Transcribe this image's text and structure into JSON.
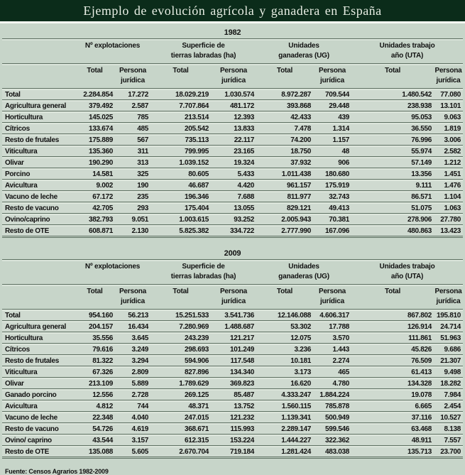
{
  "title": "Ejemplo de evolución agrícola y ganadera en España",
  "source": "Fuente: Censos Agrarios 1982-2009",
  "colors": {
    "title_bar": "#0b2c1a",
    "title_text": "#e9efe5",
    "page_background": "#c7d5c9",
    "row_background": "#cfdad0",
    "rule_line": "#5e7062"
  },
  "header": {
    "groups": [
      {
        "line1": "Nº explotaciones",
        "line2": ""
      },
      {
        "line1": "Superficie de",
        "line2": "tierras labradas (ha)"
      },
      {
        "line1": "Unidades",
        "line2": "ganaderas (UG)"
      },
      {
        "line1": "Unidades trabajo",
        "line2": "año (UTA)"
      }
    ],
    "sub": {
      "total": "Total",
      "legal_line1": "Persona",
      "legal_line2": "jurídica"
    }
  },
  "chart_data": [
    {
      "type": "table",
      "year": "1982",
      "column_groups": [
        "Nº explotaciones",
        "Superficie de tierras labradas (ha)",
        "Unidades ganaderas (UG)",
        "Unidades trabajo año (UTA)"
      ],
      "subcolumns": [
        "Total",
        "Persona jurídica"
      ],
      "rows": [
        {
          "label": "Total",
          "values": [
            "2.284.854",
            "17.272",
            "18.029.219",
            "1.030.574",
            "8.972.287",
            "709.544",
            "1.480.542",
            "77.080"
          ]
        },
        {
          "label": "Agricultura general",
          "values": [
            "379.492",
            "2.587",
            "7.707.864",
            "481.172",
            "393.868",
            "29.448",
            "238.938",
            "13.101"
          ]
        },
        {
          "label": "Horticultura",
          "values": [
            "145.025",
            "785",
            "213.514",
            "12.393",
            "42.433",
            "439",
            "95.053",
            "9.063"
          ]
        },
        {
          "label": "Cítricos",
          "values": [
            "133.674",
            "485",
            "205.542",
            "13.833",
            "7.478",
            "1.314",
            "36.550",
            "1.819"
          ]
        },
        {
          "label": "Resto de frutales",
          "values": [
            "175.889",
            "567",
            "735.113",
            "22.117",
            "74.200",
            "1.157",
            "76.996",
            "3.006"
          ]
        },
        {
          "label": "Viticultura",
          "values": [
            "135.360",
            "311",
            "799.995",
            "23.165",
            "18.750",
            "48",
            "55.974",
            "2.582"
          ]
        },
        {
          "label": "Olivar",
          "values": [
            "190.290",
            "313",
            "1.039.152",
            "19.324",
            "37.932",
            "906",
            "57.149",
            "1.212"
          ]
        },
        {
          "label": "Porcino",
          "values": [
            "14.581",
            "325",
            "80.605",
            "5.433",
            "1.011.438",
            "180.680",
            "13.356",
            "1.451"
          ]
        },
        {
          "label": "Avicultura",
          "values": [
            "9.002",
            "190",
            "46.687",
            "4.420",
            "961.157",
            "175.919",
            "9.111",
            "1.476"
          ]
        },
        {
          "label": "Vacuno de leche",
          "values": [
            "67.172",
            "235",
            "196.346",
            "7.688",
            "811.977",
            "32.743",
            "86.571",
            "1.104"
          ]
        },
        {
          "label": "Resto de vacuno",
          "values": [
            "42.705",
            "293",
            "175.404",
            "13.055",
            "829.121",
            "49.413",
            "51.075",
            "1.063"
          ]
        },
        {
          "label": "Ovino/caprino",
          "values": [
            "382.793",
            "9.051",
            "1.003.615",
            "93.252",
            "2.005.943",
            "70.381",
            "278.906",
            "27.780"
          ]
        },
        {
          "label": "Resto de OTE",
          "values": [
            "608.871",
            "2.130",
            "5.825.382",
            "334.722",
            "2.777.990",
            "167.096",
            "480.863",
            "13.423"
          ]
        }
      ]
    },
    {
      "type": "table",
      "year": "2009",
      "column_groups": [
        "Nº explotaciones",
        "Superficie de tierras labradas (ha)",
        "Unidades ganaderas (UG)",
        "Unidades trabajo año (UTA)"
      ],
      "subcolumns": [
        "Total",
        "Persona jurídica"
      ],
      "rows": [
        {
          "label": "Total",
          "values": [
            "954.160",
            "56.213",
            "15.251.533",
            "3.541.736",
            "12.146.088",
            "4.606.317",
            "867.802",
            "195.810"
          ]
        },
        {
          "label": "Agricultura general",
          "values": [
            "204.157",
            "16.434",
            "7.280.969",
            "1.488.687",
            "53.302",
            "17.788",
            "126.914",
            "24.714"
          ]
        },
        {
          "label": "Horticultura",
          "values": [
            "35.556",
            "3.645",
            "243.239",
            "121.217",
            "12.075",
            "3.570",
            "111.861",
            "51.963"
          ]
        },
        {
          "label": "Cítricos",
          "values": [
            "79.616",
            "3.249",
            "298.693",
            "101.249",
            "3.236",
            "1.443",
            "45.826",
            "9.686"
          ]
        },
        {
          "label": "Resto de frutales",
          "values": [
            "81.322",
            "3.294",
            "594.906",
            "117.548",
            "10.181",
            "2.274",
            "76.509",
            "21.307"
          ]
        },
        {
          "label": "Viticultura",
          "values": [
            "67.326",
            "2.809",
            "827.896",
            "134.340",
            "3.173",
            "465",
            "61.413",
            "9.498"
          ]
        },
        {
          "label": "Olivar",
          "values": [
            "213.109",
            "5.889",
            "1.789.629",
            "369.823",
            "16.620",
            "4.780",
            "134.328",
            "18.282"
          ]
        },
        {
          "label": "Ganado porcino",
          "values": [
            "12.556",
            "2.728",
            "269.125",
            "85.487",
            "4.333.247",
            "1.884.224",
            "19.078",
            "7.984"
          ]
        },
        {
          "label": "Avicultura",
          "values": [
            "4.812",
            "744",
            "48.371",
            "13.752",
            "1.560.115",
            "785.878",
            "6.665",
            "2.454"
          ]
        },
        {
          "label": "Vacuno de leche",
          "values": [
            "22.348",
            "4.040",
            "247.015",
            "121.232",
            "1.139.341",
            "500.949",
            "37.116",
            "10.527"
          ]
        },
        {
          "label": "Resto de vacuno",
          "values": [
            "54.726",
            "4.619",
            "368.671",
            "115.993",
            "2.289.147",
            "599.546",
            "63.468",
            "8.138"
          ]
        },
        {
          "label": "Ovino/ caprino",
          "values": [
            "43.544",
            "3.157",
            "612.315",
            "153.224",
            "1.444.227",
            "322.362",
            "48.911",
            "7.557"
          ]
        },
        {
          "label": "Resto de OTE",
          "values": [
            "135.088",
            "5.605",
            "2.670.704",
            "719.184",
            "1.281.424",
            "483.038",
            "135.713",
            "23.700"
          ]
        }
      ]
    }
  ]
}
